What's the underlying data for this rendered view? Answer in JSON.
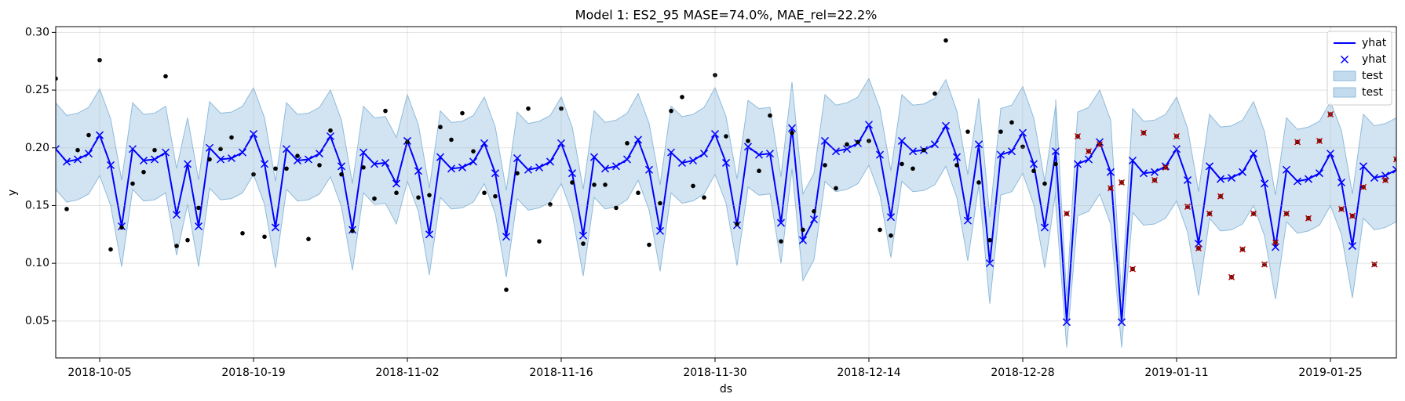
{
  "chart_data": {
    "type": "line",
    "title": "Model 1: ES2_95 MASE=74.0%, MAE_rel=22.2%",
    "xlabel": "ds",
    "ylabel": "y",
    "grid": true,
    "legend": "upper right",
    "xlim": [
      "2018-10-01",
      "2019-01-31"
    ],
    "xticks": [
      "2018-10-05",
      "2018-10-19",
      "2018-11-02",
      "2018-11-16",
      "2018-11-30",
      "2018-12-14",
      "2018-12-28",
      "2019-01-11",
      "2019-01-25"
    ],
    "ylim": [
      0.018,
      0.305
    ],
    "yticks": [
      0.05,
      {
        "value": 0.1,
        "label": "0.10"
      },
      0.15,
      {
        "value": 0.2,
        "label": "0.20"
      },
      0.25,
      {
        "value": 0.3,
        "label": "0.30"
      }
    ],
    "x": [
      "2018-10-01",
      "2018-10-02",
      "2018-10-03",
      "2018-10-04",
      "2018-10-05",
      "2018-10-06",
      "2018-10-07",
      "2018-10-08",
      "2018-10-09",
      "2018-10-10",
      "2018-10-11",
      "2018-10-12",
      "2018-10-13",
      "2018-10-14",
      "2018-10-15",
      "2018-10-16",
      "2018-10-17",
      "2018-10-18",
      "2018-10-19",
      "2018-10-20",
      "2018-10-21",
      "2018-10-22",
      "2018-10-23",
      "2018-10-24",
      "2018-10-25",
      "2018-10-26",
      "2018-10-27",
      "2018-10-28",
      "2018-10-29",
      "2018-10-30",
      "2018-10-31",
      "2018-11-01",
      "2018-11-02",
      "2018-11-03",
      "2018-11-04",
      "2018-11-05",
      "2018-11-06",
      "2018-11-07",
      "2018-11-08",
      "2018-11-09",
      "2018-11-10",
      "2018-11-11",
      "2018-11-12",
      "2018-11-13",
      "2018-11-14",
      "2018-11-15",
      "2018-11-16",
      "2018-11-17",
      "2018-11-18",
      "2018-11-19",
      "2018-11-20",
      "2018-11-21",
      "2018-11-22",
      "2018-11-23",
      "2018-11-24",
      "2018-11-25",
      "2018-11-26",
      "2018-11-27",
      "2018-11-28",
      "2018-11-29",
      "2018-11-30",
      "2018-12-01",
      "2018-12-02",
      "2018-12-03",
      "2018-12-04",
      "2018-12-05",
      "2018-12-06",
      "2018-12-07",
      "2018-12-08",
      "2018-12-09",
      "2018-12-10",
      "2018-12-11",
      "2018-12-12",
      "2018-12-13",
      "2018-12-14",
      "2018-12-15",
      "2018-12-16",
      "2018-12-17",
      "2018-12-18",
      "2018-12-19",
      "2018-12-20",
      "2018-12-21",
      "2018-12-22",
      "2018-12-23",
      "2018-12-24",
      "2018-12-25",
      "2018-12-26",
      "2018-12-27",
      "2018-12-28",
      "2018-12-29",
      "2018-12-30",
      "2018-12-31",
      "2019-01-01",
      "2019-01-02",
      "2019-01-03",
      "2019-01-04",
      "2019-01-05",
      "2019-01-06",
      "2019-01-07",
      "2019-01-08",
      "2019-01-09",
      "2019-01-10",
      "2019-01-11",
      "2019-01-12",
      "2019-01-13",
      "2019-01-14",
      "2019-01-15",
      "2019-01-16",
      "2019-01-17",
      "2019-01-18",
      "2019-01-19",
      "2019-01-20",
      "2019-01-21",
      "2019-01-22",
      "2019-01-23",
      "2019-01-24",
      "2019-01-25",
      "2019-01-26",
      "2019-01-27",
      "2019-01-28",
      "2019-01-29",
      "2019-01-30",
      "2019-01-31"
    ],
    "bands": [
      {
        "name": "test",
        "color": "#c3dbec",
        "lower": [
          0.164,
          0.153,
          0.155,
          0.16,
          0.176,
          0.15,
          0.097,
          0.164,
          0.154,
          0.155,
          0.161,
          0.107,
          0.151,
          0.097,
          0.165,
          0.155,
          0.156,
          0.161,
          0.177,
          0.151,
          0.096,
          0.164,
          0.154,
          0.155,
          0.16,
          0.175,
          0.149,
          0.094,
          0.161,
          0.151,
          0.152,
          0.134,
          0.171,
          0.145,
          0.09,
          0.157,
          0.147,
          0.148,
          0.153,
          0.169,
          0.143,
          0.088,
          0.156,
          0.146,
          0.148,
          0.153,
          0.169,
          0.143,
          0.089,
          0.157,
          0.147,
          0.149,
          0.155,
          0.172,
          0.146,
          0.093,
          0.161,
          0.152,
          0.154,
          0.16,
          0.177,
          0.152,
          0.098,
          0.166,
          0.159,
          0.16,
          0.1,
          0.182,
          0.085,
          0.103,
          0.171,
          0.162,
          0.164,
          0.169,
          0.185,
          0.159,
          0.105,
          0.171,
          0.162,
          0.163,
          0.168,
          0.184,
          0.157,
          0.102,
          0.168,
          0.065,
          0.159,
          0.162,
          0.178,
          0.151,
          0.096,
          0.162,
          null,
          null,
          null,
          null,
          null,
          null,
          null,
          null,
          null,
          null,
          null,
          null,
          null,
          null,
          null,
          null,
          null,
          null,
          null,
          null,
          null,
          null,
          null,
          null,
          null,
          null,
          null,
          null,
          null,
          null,
          null
        ],
        "upper": [
          0.239,
          0.228,
          0.23,
          0.235,
          0.251,
          0.225,
          0.172,
          0.239,
          0.229,
          0.23,
          0.236,
          0.182,
          0.226,
          0.172,
          0.24,
          0.23,
          0.231,
          0.236,
          0.252,
          0.226,
          0.171,
          0.239,
          0.229,
          0.23,
          0.235,
          0.25,
          0.224,
          0.169,
          0.236,
          0.226,
          0.227,
          0.209,
          0.246,
          0.22,
          0.165,
          0.232,
          0.222,
          0.223,
          0.228,
          0.244,
          0.218,
          0.163,
          0.231,
          0.221,
          0.223,
          0.228,
          0.244,
          0.218,
          0.164,
          0.232,
          0.222,
          0.224,
          0.23,
          0.247,
          0.221,
          0.168,
          0.236,
          0.227,
          0.229,
          0.235,
          0.252,
          0.227,
          0.173,
          0.241,
          0.234,
          0.235,
          0.175,
          0.257,
          0.16,
          0.178,
          0.246,
          0.237,
          0.239,
          0.244,
          0.26,
          0.234,
          0.18,
          0.246,
          0.237,
          0.238,
          0.243,
          0.259,
          0.232,
          0.177,
          0.243,
          0.14,
          0.234,
          0.237,
          0.253,
          0.226,
          0.171,
          0.237,
          null,
          null,
          null,
          null,
          null,
          null,
          null,
          null,
          null,
          null,
          null,
          null,
          null,
          null,
          null,
          null,
          null,
          null,
          null,
          null,
          null,
          null,
          null,
          null,
          null,
          null,
          null,
          null,
          null,
          null,
          null
        ]
      },
      {
        "name": "test",
        "color": "#c3dbec",
        "lower": [
          null,
          null,
          null,
          null,
          null,
          null,
          null,
          null,
          null,
          null,
          null,
          null,
          null,
          null,
          null,
          null,
          null,
          null,
          null,
          null,
          null,
          null,
          null,
          null,
          null,
          null,
          null,
          null,
          null,
          null,
          null,
          null,
          null,
          null,
          null,
          null,
          null,
          null,
          null,
          null,
          null,
          null,
          null,
          null,
          null,
          null,
          null,
          null,
          null,
          null,
          null,
          null,
          null,
          null,
          null,
          null,
          null,
          null,
          null,
          null,
          null,
          null,
          null,
          null,
          null,
          null,
          null,
          null,
          null,
          null,
          null,
          null,
          null,
          null,
          null,
          null,
          null,
          null,
          null,
          null,
          null,
          null,
          null,
          null,
          null,
          null,
          null,
          null,
          null,
          null,
          null,
          0.152,
          0.027,
          0.141,
          0.145,
          0.16,
          0.134,
          0.027,
          0.144,
          0.133,
          0.134,
          0.139,
          0.154,
          0.127,
          0.072,
          0.139,
          0.128,
          0.129,
          0.134,
          0.15,
          0.124,
          0.069,
          0.136,
          0.126,
          0.128,
          0.133,
          0.15,
          0.125,
          0.07,
          0.139,
          0.129,
          0.131,
          0.136
        ],
        "upper": [
          null,
          null,
          null,
          null,
          null,
          null,
          null,
          null,
          null,
          null,
          null,
          null,
          null,
          null,
          null,
          null,
          null,
          null,
          null,
          null,
          null,
          null,
          null,
          null,
          null,
          null,
          null,
          null,
          null,
          null,
          null,
          null,
          null,
          null,
          null,
          null,
          null,
          null,
          null,
          null,
          null,
          null,
          null,
          null,
          null,
          null,
          null,
          null,
          null,
          null,
          null,
          null,
          null,
          null,
          null,
          null,
          null,
          null,
          null,
          null,
          null,
          null,
          null,
          null,
          null,
          null,
          null,
          null,
          null,
          null,
          null,
          null,
          null,
          null,
          null,
          null,
          null,
          null,
          null,
          null,
          null,
          null,
          null,
          null,
          null,
          null,
          null,
          null,
          null,
          null,
          null,
          0.242,
          0.071,
          0.231,
          0.235,
          0.25,
          0.224,
          0.071,
          0.234,
          0.223,
          0.224,
          0.229,
          0.244,
          0.217,
          0.162,
          0.229,
          0.218,
          0.219,
          0.224,
          0.24,
          0.214,
          0.159,
          0.226,
          0.216,
          0.218,
          0.223,
          0.24,
          0.215,
          0.16,
          0.229,
          0.219,
          0.221,
          0.226
        ]
      }
    ],
    "series": [
      {
        "name": "yhat",
        "marker_label": "yhat",
        "color": "#0000ff",
        "marker": "x",
        "line": true,
        "values": [
          0.199,
          0.188,
          0.19,
          0.195,
          0.211,
          0.185,
          0.132,
          0.199,
          0.189,
          0.19,
          0.196,
          0.142,
          0.186,
          0.132,
          0.2,
          0.19,
          0.191,
          0.196,
          0.212,
          0.186,
          0.131,
          0.199,
          0.189,
          0.19,
          0.195,
          0.21,
          0.184,
          0.129,
          0.196,
          0.186,
          0.187,
          0.169,
          0.206,
          0.18,
          0.125,
          0.192,
          0.182,
          0.183,
          0.188,
          0.204,
          0.178,
          0.123,
          0.191,
          0.181,
          0.183,
          0.188,
          0.204,
          0.178,
          0.124,
          0.192,
          0.182,
          0.184,
          0.19,
          0.207,
          0.181,
          0.128,
          0.196,
          0.187,
          0.189,
          0.195,
          0.212,
          0.187,
          0.133,
          0.201,
          0.194,
          0.195,
          0.135,
          0.217,
          0.12,
          0.138,
          0.206,
          0.197,
          0.199,
          0.204,
          0.22,
          0.194,
          0.14,
          0.206,
          0.197,
          0.198,
          0.203,
          0.219,
          0.192,
          0.137,
          0.203,
          0.1,
          0.194,
          0.197,
          0.213,
          0.186,
          0.131,
          0.197,
          0.049,
          0.186,
          0.19,
          0.205,
          0.179,
          0.049,
          0.189,
          0.178,
          0.179,
          0.184,
          0.199,
          0.172,
          0.117,
          0.184,
          0.173,
          0.174,
          0.179,
          0.195,
          0.169,
          0.114,
          0.181,
          0.171,
          0.173,
          0.178,
          0.195,
          0.17,
          0.115,
          0.184,
          0.174,
          0.176,
          0.181
        ]
      },
      {
        "color": "#000000",
        "marker": "dot",
        "line": false,
        "values": [
          0.26,
          0.147,
          0.198,
          0.211,
          0.276,
          0.112,
          0.131,
          0.169,
          0.179,
          0.198,
          0.262,
          0.115,
          0.12,
          0.148,
          0.19,
          0.199,
          0.209,
          0.126,
          0.177,
          0.123,
          0.182,
          0.182,
          0.193,
          0.121,
          0.185,
          0.215,
          0.177,
          0.128,
          0.183,
          0.156,
          0.232,
          0.161,
          0.205,
          0.157,
          0.159,
          0.218,
          0.207,
          0.23,
          0.197,
          0.161,
          0.158,
          0.077,
          0.178,
          0.234,
          0.119,
          0.151,
          0.234,
          0.17,
          0.117,
          0.168,
          0.168,
          0.148,
          0.204,
          0.161,
          0.116,
          0.152,
          0.232,
          0.244,
          0.167,
          0.157,
          0.263,
          0.21,
          0.134,
          0.206,
          0.18,
          0.228,
          0.119,
          0.213,
          0.129,
          0.145,
          0.185,
          0.165,
          0.203,
          0.205,
          0.206,
          0.129,
          0.124,
          0.186,
          0.182,
          0.198,
          0.247,
          0.293,
          0.185,
          0.214,
          0.17,
          0.12,
          0.214,
          0.222,
          0.201,
          0.18,
          0.169,
          0.186,
          null,
          null,
          null,
          null,
          null,
          null,
          null,
          null,
          null,
          null,
          null,
          null,
          null,
          null,
          null,
          null,
          null,
          null,
          null,
          null,
          null,
          null,
          null,
          null,
          null,
          null,
          null,
          null,
          null,
          null,
          null
        ]
      },
      {
        "color": "#cc0000",
        "marker": "dotx",
        "line": false,
        "values": [
          null,
          null,
          null,
          null,
          null,
          null,
          null,
          null,
          null,
          null,
          null,
          null,
          null,
          null,
          null,
          null,
          null,
          null,
          null,
          null,
          null,
          null,
          null,
          null,
          null,
          null,
          null,
          null,
          null,
          null,
          null,
          null,
          null,
          null,
          null,
          null,
          null,
          null,
          null,
          null,
          null,
          null,
          null,
          null,
          null,
          null,
          null,
          null,
          null,
          null,
          null,
          null,
          null,
          null,
          null,
          null,
          null,
          null,
          null,
          null,
          null,
          null,
          null,
          null,
          null,
          null,
          null,
          null,
          null,
          null,
          null,
          null,
          null,
          null,
          null,
          null,
          null,
          null,
          null,
          null,
          null,
          null,
          null,
          null,
          null,
          null,
          null,
          null,
          null,
          null,
          null,
          null,
          0.143,
          0.21,
          0.197,
          0.203,
          0.165,
          0.17,
          0.095,
          0.213,
          0.172,
          0.183,
          0.21,
          0.149,
          0.113,
          0.143,
          0.158,
          0.088,
          0.112,
          0.143,
          0.099,
          0.118,
          0.143,
          0.205,
          0.139,
          0.206,
          0.229,
          0.147,
          0.141,
          0.166,
          0.099,
          0.172,
          0.19
        ]
      }
    ]
  }
}
